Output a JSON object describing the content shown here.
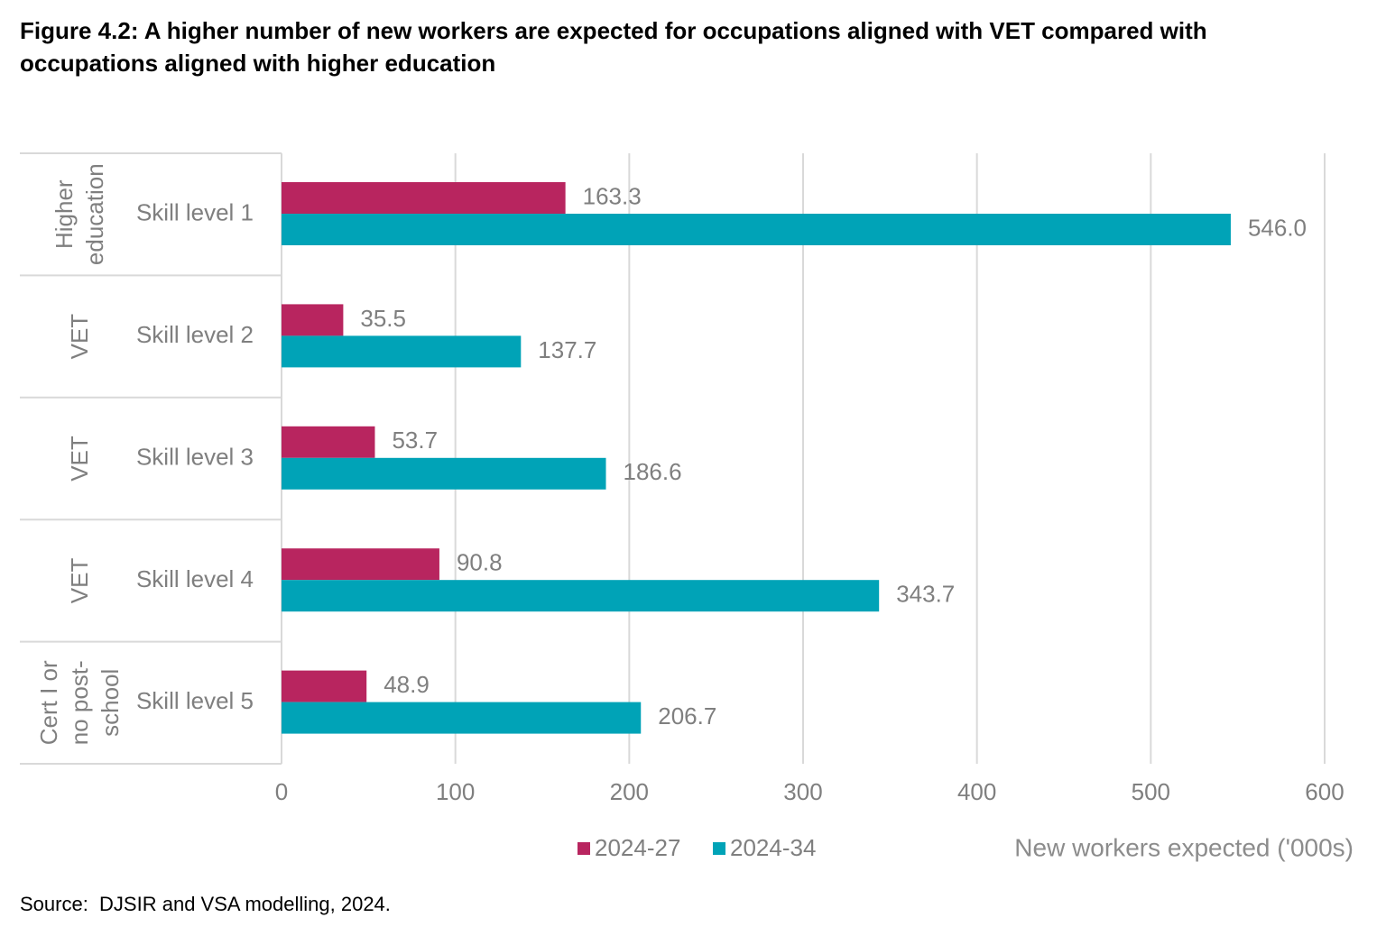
{
  "chart_data": {
    "type": "bar",
    "orientation": "horizontal",
    "title": "Figure 4.2: A higher number of new workers are expected for occupations aligned with VET compared with occupations aligned with higher education",
    "group_labels": [
      [
        "Higher",
        "education"
      ],
      [
        "VET"
      ],
      [
        "VET"
      ],
      [
        "VET"
      ],
      [
        "Cert I or",
        "no post-",
        "school"
      ]
    ],
    "categories": [
      "Skill level 1",
      "Skill level 2",
      "Skill level 3",
      "Skill level 4",
      "Skill level 5"
    ],
    "series": [
      {
        "name": "2024-27",
        "color": "#b8255f",
        "values": [
          163.3,
          35.5,
          53.7,
          90.8,
          48.9
        ],
        "value_labels": [
          "163.3",
          "35.5",
          "53.7",
          "90.8",
          "48.9"
        ]
      },
      {
        "name": "2024-34",
        "color": "#00a3b7",
        "values": [
          546.0,
          137.7,
          186.6,
          343.7,
          206.7
        ],
        "value_labels": [
          "546.0",
          "137.7",
          "186.6",
          "343.7",
          "206.7"
        ]
      }
    ],
    "xlim": [
      0,
      600
    ],
    "xticks": [
      0,
      100,
      200,
      300,
      400,
      500,
      600
    ],
    "xlabel": "New workers expected ('000s)",
    "grid": true,
    "legend": "bottom",
    "source": "Source:  DJSIR and VSA modelling, 2024."
  }
}
